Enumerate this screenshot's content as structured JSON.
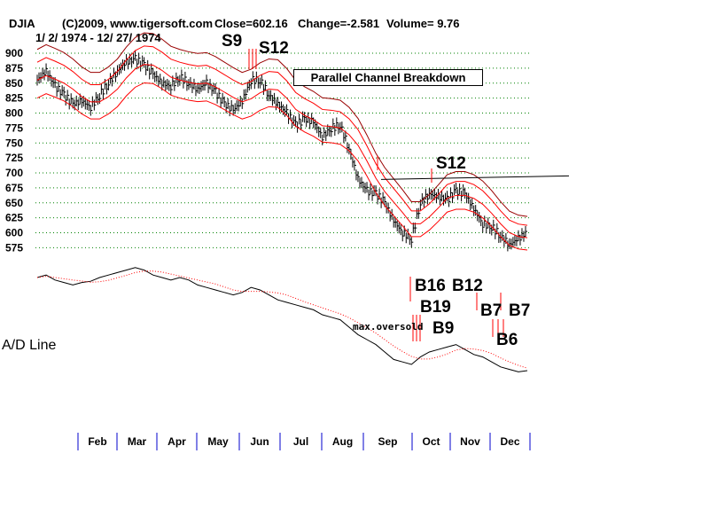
{
  "header": {
    "symbol": "DJIA",
    "copyright": "(C)2009, www.tigersoft.com",
    "close": "Close=602.16",
    "change": "Change=-2.581",
    "volume": "Volume= 9.76",
    "date_range": "1/ 2/ 1974 - 12/ 27/ 1974"
  },
  "chart_data": {
    "type": "line",
    "title": "DJIA 1974",
    "ylim": [
      575,
      900
    ],
    "yticks": [
      900,
      875,
      850,
      825,
      800,
      775,
      750,
      725,
      700,
      675,
      650,
      625,
      600,
      575
    ],
    "months": [
      "Feb",
      "Mar",
      "Apr",
      "May",
      "Jun",
      "Jul",
      "Aug",
      "Sep",
      "Oct",
      "Nov",
      "Dec"
    ],
    "series": [
      {
        "name": "DJIA weekly close (approx)",
        "values": [
          855,
          870,
          845,
          830,
          815,
          820,
          810,
          830,
          850,
          870,
          885,
          890,
          880,
          865,
          850,
          845,
          860,
          850,
          840,
          850,
          835,
          815,
          805,
          820,
          855,
          855,
          830,
          815,
          800,
          780,
          790,
          785,
          760,
          775,
          780,
          740,
          690,
          670,
          665,
          650,
          620,
          600,
          590,
          650,
          665,
          660,
          655,
          670,
          665,
          640,
          615,
          610,
          595,
          580,
          590,
          602
        ]
      },
      {
        "name": "A/D Line (relative)",
        "values": [
          70,
          72,
          68,
          66,
          64,
          66,
          67,
          70,
          72,
          74,
          76,
          78,
          76,
          72,
          70,
          68,
          70,
          68,
          64,
          62,
          60,
          58,
          56,
          58,
          62,
          60,
          56,
          52,
          50,
          48,
          46,
          44,
          40,
          38,
          36,
          30,
          24,
          20,
          16,
          10,
          4,
          2,
          0,
          6,
          10,
          12,
          14,
          16,
          12,
          8,
          6,
          2,
          -2,
          -4,
          -6,
          -5
        ]
      }
    ],
    "channel_line_value": 692,
    "annotation_box": "Parallel Channel Breakdown",
    "ad_label": "A/D Line",
    "signals": [
      "S9",
      "S12",
      "S12",
      "B16",
      "B12",
      "B19",
      "B9",
      "B7",
      "B7",
      "B6"
    ],
    "oversold_label": "max.oversold",
    "colors": {
      "bands": "#ff0000",
      "upper": "#990000",
      "grid": "#008000",
      "sell": "#ff0000"
    }
  }
}
